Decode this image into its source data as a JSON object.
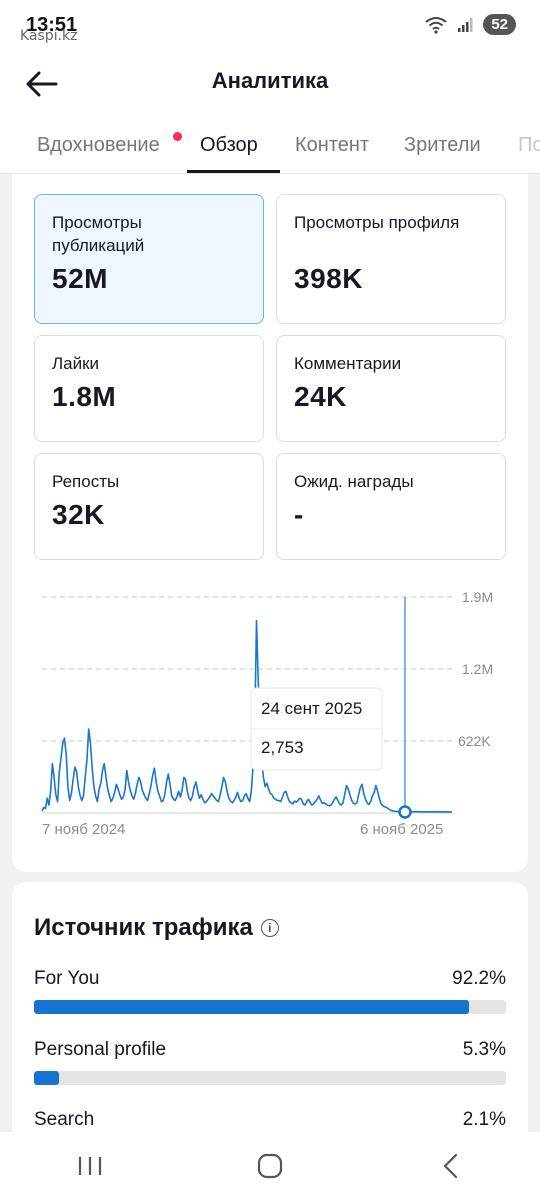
{
  "status": {
    "time": "13:51",
    "watermark": "Kaspi.kz",
    "battery": "52"
  },
  "header": {
    "title": "Аналитика"
  },
  "tabs": [
    {
      "label": "Вдохновение",
      "has_dot": true
    },
    {
      "label": "Обзор",
      "active": true
    },
    {
      "label": "Контент"
    },
    {
      "label": "Зрители"
    },
    {
      "label": "По"
    }
  ],
  "stats": [
    {
      "label": "Просмотры публикаций",
      "value": "52M",
      "selected": true
    },
    {
      "label": "Просмотры профиля",
      "value": "398K"
    },
    {
      "label": "Лайки",
      "value": "1.8M"
    },
    {
      "label": "Комментарии",
      "value": "24K"
    },
    {
      "label": "Репосты",
      "value": "32K"
    },
    {
      "label": "Ожид. награды",
      "value": "-"
    }
  ],
  "chart_data": {
    "type": "line",
    "y_ticks": [
      "1.9M",
      "1.2M",
      "622K"
    ],
    "x_start_label": "7 нояб 2024",
    "x_end_label": "6 нояб 2025",
    "ylim": [
      0,
      1866000
    ],
    "tooltip": {
      "date": "24 сент 2025",
      "value": "2,753"
    },
    "color": "#1976cf",
    "values": [
      8000,
      40000,
      30000,
      120000,
      60000,
      180000,
      420000,
      300000,
      150000,
      90000,
      350000,
      470000,
      600000,
      640000,
      500000,
      220000,
      100000,
      160000,
      280000,
      390000,
      350000,
      220000,
      140000,
      100000,
      140000,
      300000,
      460000,
      720000,
      600000,
      380000,
      220000,
      140000,
      90000,
      200000,
      250000,
      360000,
      420000,
      300000,
      200000,
      140000,
      90000,
      120000,
      170000,
      240000,
      200000,
      150000,
      110000,
      130000,
      190000,
      360000,
      260000,
      190000,
      140000,
      110000,
      160000,
      240000,
      300000,
      260000,
      190000,
      150000,
      120000,
      100000,
      160000,
      230000,
      320000,
      380000,
      260000,
      180000,
      140000,
      90000,
      100000,
      150000,
      260000,
      330000,
      240000,
      140000,
      110000,
      100000,
      130000,
      180000,
      130000,
      190000,
      300000,
      280000,
      180000,
      120000,
      100000,
      140000,
      220000,
      260000,
      180000,
      120000,
      150000,
      110000,
      80000,
      90000,
      110000,
      130000,
      160000,
      140000,
      120000,
      100000,
      90000,
      150000,
      220000,
      300000,
      260000,
      180000,
      120000,
      95000,
      80000,
      100000,
      130000,
      170000,
      120000,
      90000,
      100000,
      140000,
      160000,
      120000,
      90000,
      180000,
      400000,
      780000,
      1660000,
      1150000,
      700000,
      450000,
      300000,
      220000,
      250000,
      200000,
      160000,
      150000,
      120000,
      110000,
      100000,
      100000,
      90000,
      130000,
      170000,
      180000,
      130000,
      90000,
      80000,
      70000,
      95000,
      85000,
      100000,
      120000,
      110000,
      70000,
      60000,
      90000,
      110000,
      85000,
      60000,
      70000,
      90000,
      110000,
      140000,
      105000,
      75000,
      80000,
      70000,
      60000,
      55000,
      60000,
      80000,
      110000,
      130000,
      100000,
      70000,
      60000,
      80000,
      150000,
      230000,
      200000,
      150000,
      100000,
      75000,
      70000,
      80000,
      150000,
      210000,
      240000,
      160000,
      110000,
      80000,
      65000,
      90000,
      140000,
      170000,
      230000,
      180000,
      120000,
      70000,
      55000,
      45000,
      40000,
      30000,
      20000,
      12000,
      8000,
      6000,
      5000,
      4000,
      3500,
      3000,
      3000,
      2800,
      2753,
      2700,
      2600,
      2500,
      2500,
      2400,
      2300,
      2200,
      2100,
      2000,
      2000,
      1900,
      1800,
      1800,
      1700,
      1700,
      1600,
      1500,
      1400,
      1400,
      1300,
      1200,
      1100,
      1100,
      1000,
      1000,
      900
    ]
  },
  "traffic": {
    "title": "Источник трафика",
    "sources": [
      {
        "label": "For You",
        "pct": "92.2%",
        "fraction": 0.922,
        "color": "#1872d0"
      },
      {
        "label": "Personal profile",
        "pct": "5.3%",
        "fraction": 0.053,
        "color": "#1872d0"
      },
      {
        "label": "Search",
        "pct": "2.1%",
        "fraction": 0.021,
        "color": "#1872d0"
      }
    ]
  }
}
